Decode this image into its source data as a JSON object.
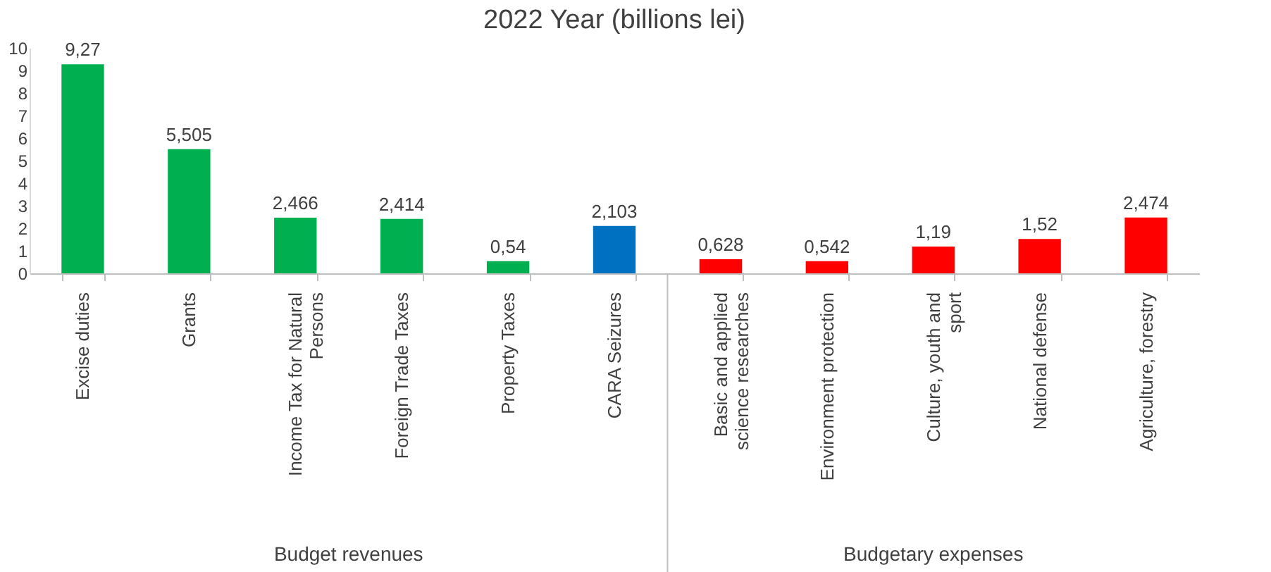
{
  "chart_data": {
    "type": "bar",
    "title": "2022 Year (billions lei)",
    "categories": [
      "Excise duties",
      "Grants",
      "Income Tax for Natural Persons",
      "Foreign Trade Taxes",
      "Property Taxes",
      "CARA Seizures",
      "Basic and applied science researches",
      "Environment protection",
      "Culture, youth and sport",
      "National defense",
      "Agriculture, forestry"
    ],
    "values": [
      9.27,
      5.505,
      2.466,
      2.414,
      0.54,
      2.103,
      0.628,
      0.542,
      1.19,
      1.52,
      2.474
    ],
    "value_labels": [
      "9,27",
      "5,505",
      "2,466",
      "2,414",
      "0,54",
      "2,103",
      "0,628",
      "0,542",
      "1,19",
      "1,52",
      "2,474"
    ],
    "colors": [
      "#00b050",
      "#00b050",
      "#00b050",
      "#00b050",
      "#00b050",
      "#0070c0",
      "#ff0000",
      "#ff0000",
      "#ff0000",
      "#ff0000",
      "#ff0000"
    ],
    "ylim": [
      0,
      10
    ],
    "yticks": [
      0,
      1,
      2,
      3,
      4,
      5,
      6,
      7,
      8,
      9,
      10
    ],
    "annotations": [
      "Budget revenues",
      "Budgetary expenses"
    ],
    "grid": false
  }
}
